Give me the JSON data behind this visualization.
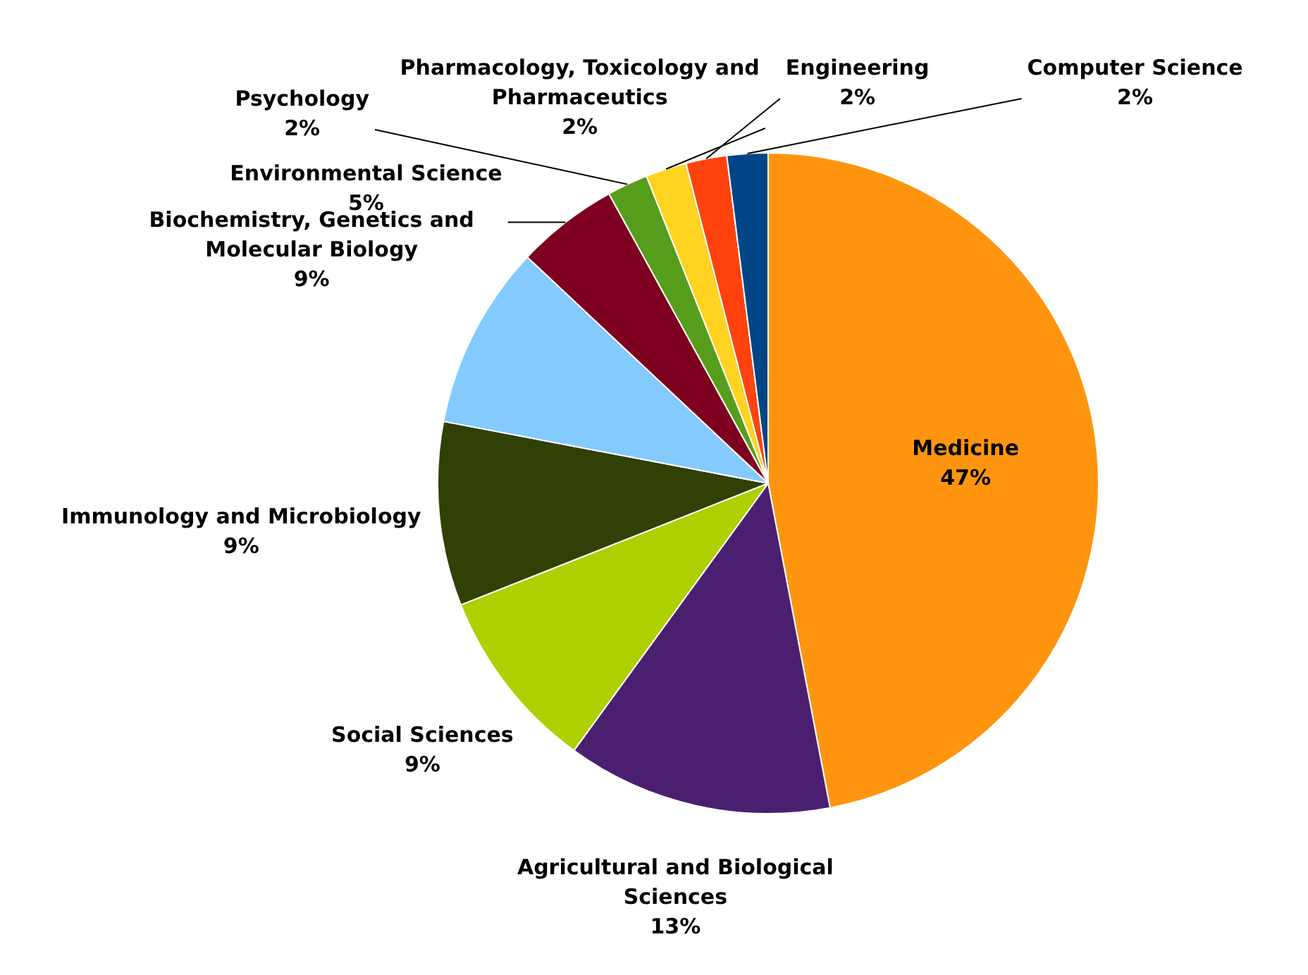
{
  "chart_data": {
    "type": "pie",
    "categories": [
      "Medicine",
      "Agricultural and Biological Sciences",
      "Social Sciences",
      "Immunology and Microbiology",
      "Biochemistry, Genetics and Molecular Biology",
      "Environmental Science",
      "Psychology",
      "Pharmacology, Toxicology and Pharmaceutics",
      "Engineering",
      "Computer Science"
    ],
    "values": [
      47,
      13,
      9,
      9,
      9,
      5,
      2,
      2,
      2,
      2
    ],
    "value_labels": [
      "47%",
      "13%",
      "9%",
      "9%",
      "9%",
      "5%",
      "2%",
      "2%",
      "2%",
      "2%"
    ],
    "colors": [
      "#ff950e",
      "#4b1f6f",
      "#aecf00",
      "#314004",
      "#83caff",
      "#7e0021",
      "#579d1c",
      "#ffd320",
      "#ff420e",
      "#004586"
    ],
    "legend": false
  }
}
